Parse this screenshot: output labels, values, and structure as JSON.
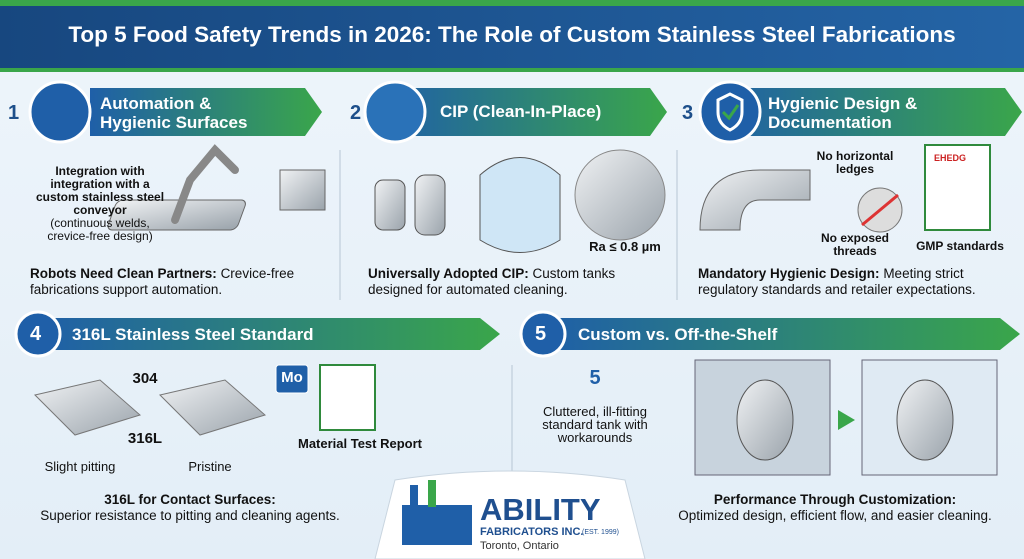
{
  "header": {
    "title": "Top 5 Food Safety Trends in 2026: The Role of Custom Stainless Steel Fabrications"
  },
  "sections": [
    {
      "number": "1",
      "heading": "Automation & Hygienic Surfaces",
      "labels": [
        "Integration with integration with a custom stainless steel conveyor",
        "(continuous welds, crevice-free design)"
      ],
      "summary_bold": "Robots Need Clean Partners:",
      "summary_text": "Crevice-free fabrications support automation."
    },
    {
      "number": "2",
      "heading": "CIP (Clean-In-Place)",
      "labels": [
        "Ra ≤ 0.8 µm"
      ],
      "summary_bold": "Universally Adopted CIP:",
      "summary_text": "Custom tanks designed for automated cleaning."
    },
    {
      "number": "3",
      "heading": "Hygienic Design & Documentation",
      "labels": [
        "No horizontal ledges",
        "No exposed threads",
        "GMP standards",
        "EHEDG"
      ],
      "summary_bold": "Mandatory Hygienic Design:",
      "summary_text": "Meeting strict regulatory standards and retailer expectations."
    },
    {
      "number": "4",
      "heading": "316L Stainless Steel Standard",
      "labels": [
        "304",
        "316L",
        "Slight pitting",
        "Pristine",
        "Mo",
        "Material Test Report"
      ],
      "summary_bold": "316L for Contact Surfaces:",
      "summary_text": "Superior resistance to pitting and cleaning agents."
    },
    {
      "number": "5",
      "heading": "Custom vs. Off-the-Shelf",
      "labels": [
        "5",
        "Cluttered, ill-fitting standard tank with workarounds"
      ],
      "summary_bold": "Performance Through Customization:",
      "summary_text": "Optimized design, efficient flow, and easier cleaning."
    }
  ],
  "logo": {
    "name": "ABILITY",
    "company": "FABRICATORS INC.",
    "established": "(EST. 1999)",
    "location": "Toronto, Ontario"
  }
}
